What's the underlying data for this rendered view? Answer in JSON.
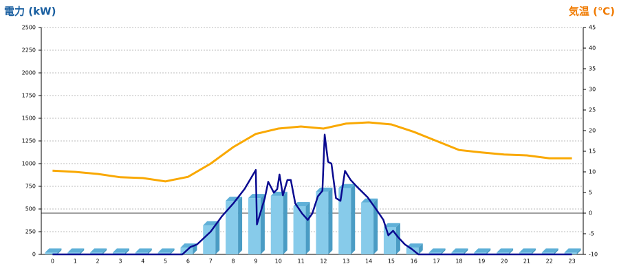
{
  "chart_data": {
    "type": "combo",
    "y_label": "電力 (kW)",
    "y_label_color": "#1a5fa0",
    "y2_label": "気温 (℃)",
    "y2_label_color": "#f07a00",
    "categories": [
      "0",
      "1",
      "2",
      "3",
      "4",
      "5",
      "6",
      "7",
      "8",
      "9",
      "10",
      "11",
      "12",
      "13",
      "14",
      "15",
      "16",
      "17",
      "18",
      "19",
      "20",
      "21",
      "22",
      "23"
    ],
    "ylim": [
      0,
      2500
    ],
    "yticks": [
      0,
      250,
      500,
      750,
      1000,
      1250,
      1500,
      1750,
      2000,
      2250,
      2500
    ],
    "y2lim": [
      -10,
      45
    ],
    "y2ticks": [
      -10,
      -5,
      0,
      5,
      10,
      15,
      20,
      25,
      30,
      35,
      40,
      45
    ],
    "y2_reference": 0,
    "grid": true,
    "bars": {
      "color": "#87cbea",
      "values": [
        20,
        20,
        20,
        20,
        20,
        20,
        75,
        320,
        590,
        620,
        645,
        530,
        690,
        730,
        570,
        300,
        75,
        20,
        20,
        20,
        20,
        20,
        20,
        20
      ]
    },
    "power_line": {
      "color": "#0a0a90",
      "x": [
        0,
        5.75,
        6.1,
        6.4,
        7,
        7.5,
        8,
        8.5,
        9,
        9.05,
        9.4,
        9.55,
        9.8,
        9.95,
        10.05,
        10.2,
        10.4,
        10.55,
        10.75,
        11.05,
        11.3,
        11.5,
        11.75,
        11.95,
        12.05,
        12.2,
        12.35,
        12.55,
        12.75,
        12.95,
        13.2,
        13.5,
        13.95,
        14.35,
        14.65,
        14.87,
        15.08,
        15.3,
        15.6,
        15.9,
        16.2,
        23
      ],
      "values": [
        0,
        0,
        80,
        110,
        250,
        420,
        560,
        720,
        930,
        330,
        620,
        800,
        680,
        720,
        880,
        650,
        820,
        820,
        560,
        450,
        380,
        450,
        640,
        700,
        1320,
        1020,
        1000,
        620,
        590,
        920,
        820,
        740,
        630,
        490,
        380,
        210,
        260,
        190,
        110,
        60,
        0,
        0
      ]
    },
    "temperature_line": {
      "color": "#f9a800",
      "axis": "y2",
      "values": [
        10.3,
        10,
        9.5,
        8.7,
        8.5,
        7.7,
        8.8,
        12,
        16,
        19.2,
        20.5,
        21,
        20.5,
        21.7,
        22,
        21.5,
        19.7,
        17.5,
        15.3,
        14.7,
        14.2,
        14,
        13.3,
        13.3
      ]
    }
  }
}
